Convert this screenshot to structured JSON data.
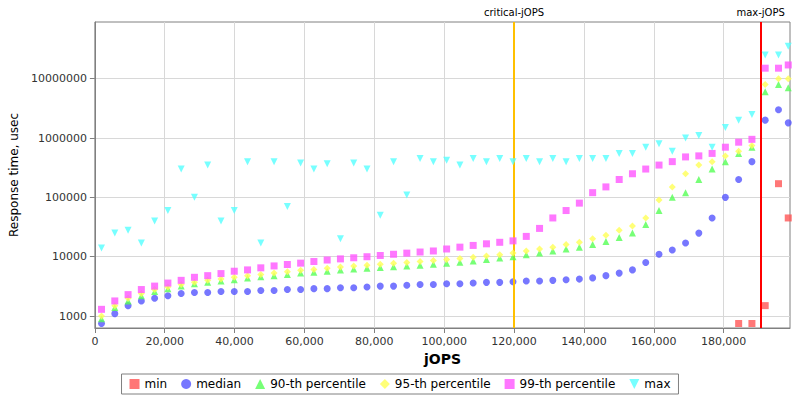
{
  "chart_data": {
    "type": "scatter",
    "x_label": "jOPS",
    "y_label": "Response time, usec",
    "log": "y",
    "grid": true,
    "legend": "bottom",
    "xlim": [
      0,
      199000
    ],
    "xticks": [
      0,
      {
        "value": 20000,
        "label": "20,000"
      },
      {
        "value": 40000,
        "label": "40,000"
      },
      {
        "value": 60000,
        "label": "60,000"
      },
      {
        "value": 80000,
        "label": "80,000"
      },
      {
        "value": 100000,
        "label": "100,000"
      },
      {
        "value": 120000,
        "label": "120,000"
      },
      {
        "value": 140000,
        "label": "140,000"
      },
      {
        "value": 160000,
        "label": "160,000"
      },
      {
        "value": 180000,
        "label": "180,000"
      }
    ],
    "ylim": [
      630,
      90000000
    ],
    "yticks": [
      1000,
      10000,
      100000,
      1000000,
      10000000
    ],
    "annotations": [
      {
        "label": "critical-jOPS",
        "x": 120000,
        "color": "#ffc000"
      },
      {
        "label": "max-jOPS",
        "x": 190600,
        "color": "#ff0000"
      }
    ],
    "x": [
      1900,
      5700,
      9500,
      13300,
      17100,
      20900,
      24700,
      28500,
      32300,
      36100,
      39900,
      43700,
      47500,
      51300,
      55100,
      58900,
      62700,
      66500,
      70300,
      74100,
      77900,
      81700,
      85500,
      89300,
      93100,
      96900,
      100700,
      104500,
      108300,
      112100,
      115900,
      119700,
      123500,
      127300,
      131100,
      134900,
      138700,
      142500,
      146300,
      150100,
      153900,
      157700,
      161500,
      165300,
      169100,
      172900,
      176700,
      180500,
      184300,
      188100,
      191900,
      195700,
      198500
    ],
    "series": [
      {
        "name": "min",
        "color": "#ff5555",
        "marker": "square",
        "values": [
          null,
          null,
          null,
          null,
          null,
          null,
          null,
          null,
          null,
          null,
          null,
          null,
          null,
          null,
          null,
          null,
          null,
          null,
          null,
          null,
          null,
          null,
          null,
          null,
          null,
          null,
          null,
          null,
          null,
          null,
          null,
          null,
          null,
          null,
          null,
          null,
          null,
          null,
          null,
          null,
          null,
          null,
          null,
          null,
          null,
          null,
          null,
          null,
          750,
          750,
          1500,
          170000,
          45000
        ]
      },
      {
        "name": "median",
        "color": "#5555ff",
        "marker": "circle",
        "values": [
          750,
          1100,
          1500,
          1800,
          2000,
          2200,
          2400,
          2500,
          2500,
          2600,
          2600,
          2600,
          2700,
          2700,
          2800,
          2800,
          2900,
          2900,
          3000,
          3000,
          3100,
          3200,
          3200,
          3300,
          3400,
          3400,
          3500,
          3500,
          3600,
          3700,
          3700,
          3800,
          3900,
          3900,
          4000,
          4100,
          4200,
          4400,
          4800,
          5300,
          6000,
          8000,
          11000,
          13000,
          17000,
          25000,
          45000,
          100000,
          200000,
          400000,
          2000000,
          3000000,
          1800000
        ]
      },
      {
        "name": "90-th percentile",
        "color": "#55ff55",
        "marker": "triangle",
        "values": [
          900,
          1400,
          1800,
          2200,
          2600,
          2900,
          3200,
          3500,
          3700,
          3900,
          4100,
          4400,
          4600,
          4800,
          5000,
          5300,
          5500,
          5700,
          6000,
          6200,
          6400,
          6600,
          6800,
          7000,
          7200,
          7500,
          7800,
          8100,
          8500,
          9000,
          9500,
          10000,
          10800,
          11500,
          12500,
          13500,
          14500,
          16000,
          18000,
          21000,
          25000,
          35000,
          60000,
          100000,
          120000,
          200000,
          300000,
          400000,
          550000,
          700000,
          6000000,
          8000000,
          7000000
        ]
      },
      {
        "name": "95-th percentile",
        "color": "#ffff55",
        "marker": "diamond",
        "values": [
          1000,
          1500,
          2000,
          2400,
          2800,
          3100,
          3400,
          3700,
          4000,
          4200,
          4500,
          4800,
          5000,
          5300,
          5600,
          5900,
          6100,
          6400,
          6700,
          7000,
          7200,
          7500,
          7800,
          8000,
          8300,
          8600,
          9000,
          9300,
          9800,
          10300,
          10800,
          11500,
          12500,
          13500,
          14500,
          16000,
          17500,
          20000,
          23000,
          28000,
          33000,
          45000,
          90000,
          150000,
          250000,
          350000,
          400000,
          500000,
          600000,
          750000,
          8000000,
          10000000,
          10000000
        ]
      },
      {
        "name": "99-th percentile",
        "color": "#ff55ff",
        "marker": "square",
        "values": [
          1300,
          1800,
          2300,
          2800,
          3200,
          3600,
          4000,
          4500,
          4800,
          5200,
          5700,
          6000,
          6500,
          7000,
          7400,
          7800,
          8300,
          8800,
          9200,
          9600,
          10000,
          10500,
          11000,
          11500,
          12000,
          12500,
          13500,
          14500,
          15500,
          16500,
          17500,
          18500,
          22000,
          30000,
          45000,
          60000,
          80000,
          120000,
          150000,
          200000,
          250000,
          300000,
          350000,
          400000,
          480000,
          500000,
          550000,
          700000,
          850000,
          950000,
          15000000,
          15000000,
          17000000
        ]
      },
      {
        "name": "max",
        "color": "#55ffff",
        "marker": "triangle-down",
        "values": [
          14000,
          25000,
          28000,
          17000,
          40000,
          60000,
          300000,
          100000,
          350000,
          40000,
          60000,
          400000,
          17000,
          400000,
          70000,
          380000,
          300000,
          370000,
          20000,
          380000,
          300000,
          50000,
          400000,
          110000,
          450000,
          400000,
          420000,
          350000,
          450000,
          400000,
          450000,
          400000,
          450000,
          400000,
          450000,
          400000,
          450000,
          450000,
          450000,
          550000,
          550000,
          700000,
          800000,
          600000,
          1000000,
          1100000,
          700000,
          1500000,
          2000000,
          2500000,
          25000000,
          25000000,
          35000000
        ]
      }
    ]
  }
}
